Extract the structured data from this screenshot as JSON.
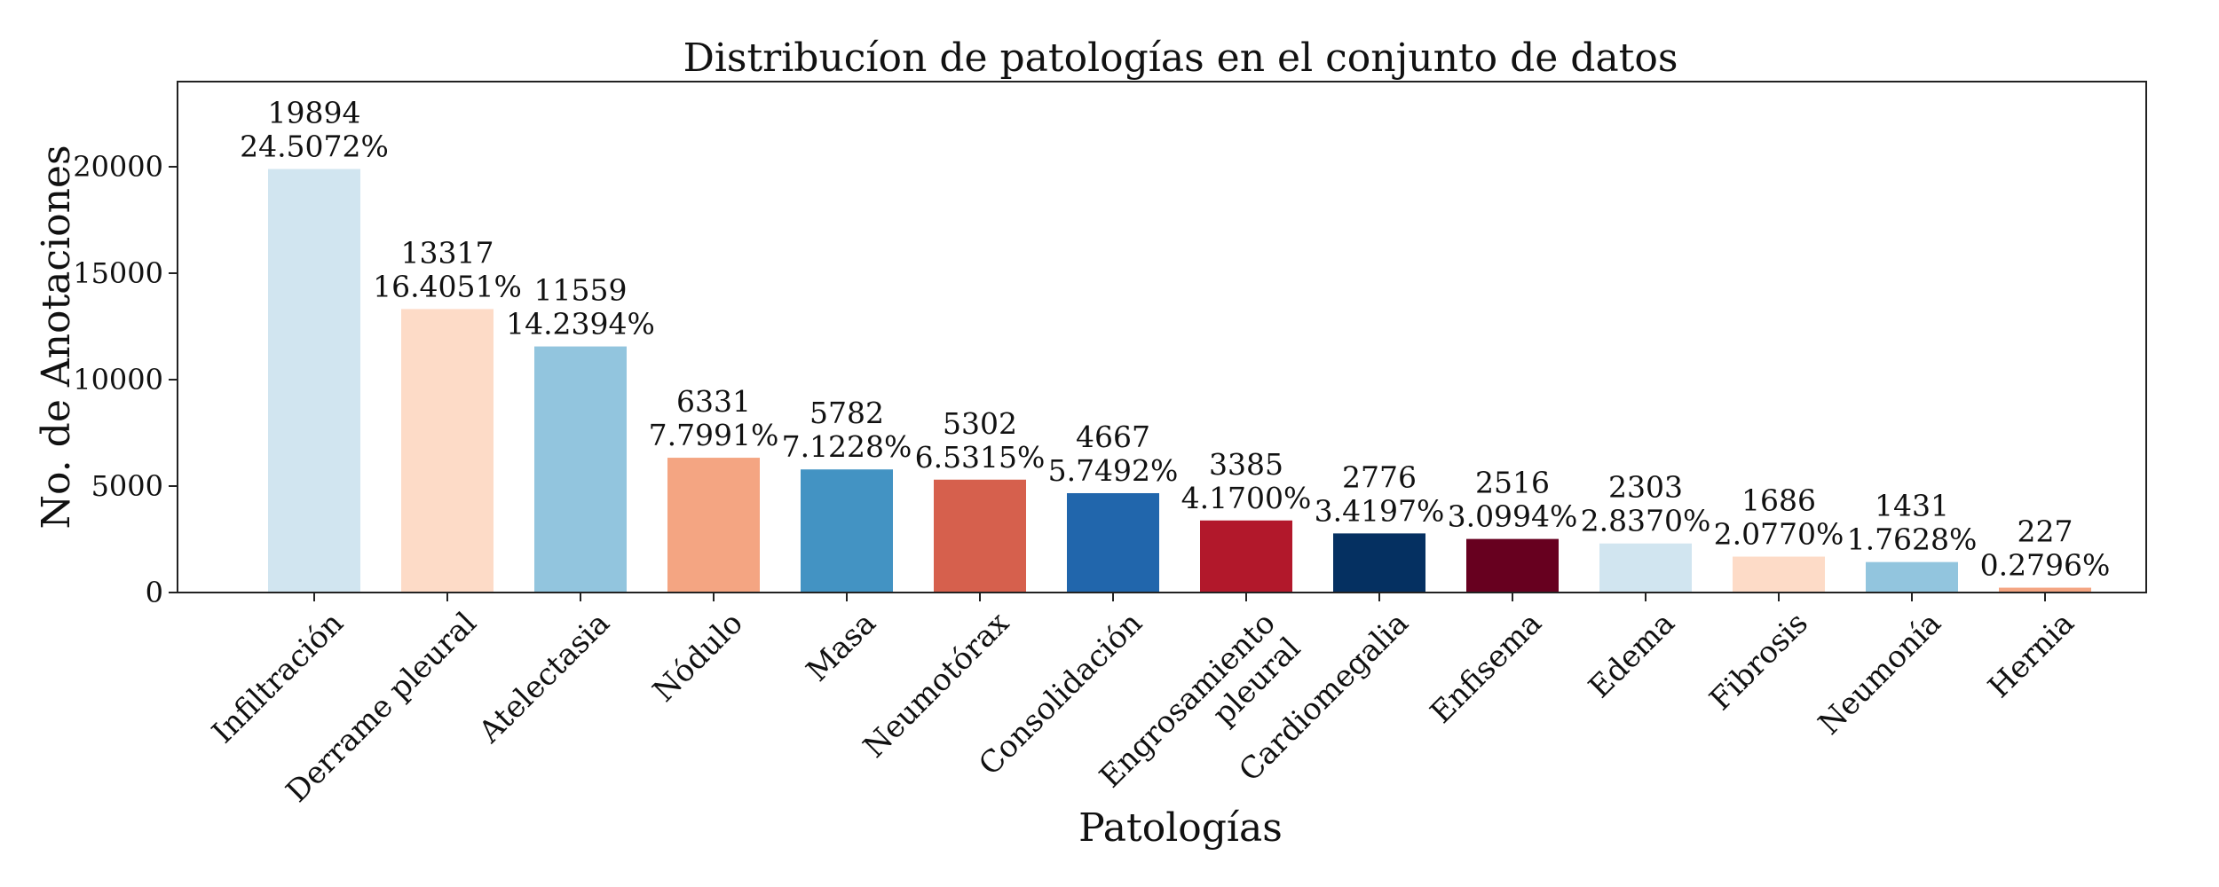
{
  "chart_data": {
    "type": "bar",
    "title": "Distribucíon de patologías en el conjunto de datos",
    "xlabel": "Patologías",
    "ylabel": "No. de Anotaciones",
    "ylim": [
      0,
      24000
    ],
    "yticks": [
      0,
      5000,
      10000,
      15000,
      20000
    ],
    "grid": false,
    "legend": "none",
    "categories": [
      [
        "Infiltración"
      ],
      [
        "Derrame pleural"
      ],
      [
        "Atelectasia"
      ],
      [
        "Nódulo"
      ],
      [
        "Masa"
      ],
      [
        "Neumotórax"
      ],
      [
        "Consolidación"
      ],
      [
        "Engrosamiento",
        "pleural"
      ],
      [
        "Cardiomegalia"
      ],
      [
        "Enfisema"
      ],
      [
        "Edema"
      ],
      [
        "Fibrosis"
      ],
      [
        "Neumonía"
      ],
      [
        "Hernia"
      ]
    ],
    "values": [
      19894,
      13317,
      11559,
      6331,
      5782,
      5302,
      4667,
      3385,
      2776,
      2516,
      2303,
      1686,
      1431,
      227
    ],
    "percent_labels": [
      "24.5072%",
      "16.4051%",
      "14.2394%",
      "7.7991%",
      "7.1228%",
      "6.5315%",
      "5.7492%",
      "4.1700%",
      "3.4197%",
      "3.0994%",
      "2.8370%",
      "2.0770%",
      "1.7628%",
      "0.2796%"
    ],
    "colors": [
      "#d1e5f0",
      "#fddbc7",
      "#92c5de",
      "#f4a582",
      "#4393c3",
      "#d6604d",
      "#2166ac",
      "#b2182b",
      "#053061",
      "#67001f",
      "#d1e5f0",
      "#fddbc7",
      "#92c5de",
      "#f4a582"
    ]
  }
}
